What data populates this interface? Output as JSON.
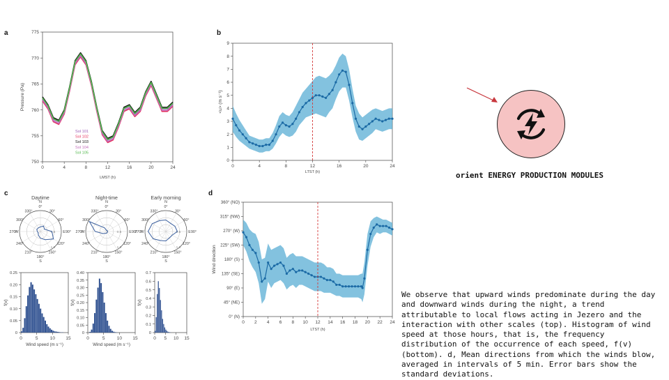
{
  "colors": {
    "primary_blue": "#1b6aa5",
    "band_blue": "#5aaed4",
    "red_dashed": "#d43a3a",
    "badge_fill": "#f6c3c3",
    "arrow": "#c8373d",
    "hist_fill": "#2d4f8f",
    "rose_line": "#3a5f9e",
    "sol_101": "#9b59b6",
    "sol_102": "#e6335f",
    "sol_103": "#111111",
    "sol_104": "#c06ab8",
    "sol_105": "#52b84c"
  },
  "icons": {
    "badge": "bolt-cycle-icon",
    "arrow": "arrow-pointer-icon"
  },
  "module_label": "orient ENERGY PRODUCTION MODULES",
  "caption": "We observe that upward winds predominate during the day and downward winds during the night, a trend attributable to local flows acting in Jezero and the interaction with other scales (top). Histogram of wind speed at those hours, that is, the frequency distribution of the occurrence of each speed, f(v) (bottom). d, Mean directions from which the winds blow, averaged in intervals of 5 min. Error bars show the standard deviations.",
  "chart_data": [
    {
      "panel": "a",
      "type": "line",
      "xlabel": "LMST (h)",
      "ylabel": "Pressure (Pa)",
      "xlim": [
        0,
        24
      ],
      "ylim": [
        750,
        775
      ],
      "xticks": [
        "0",
        "4",
        "8",
        "12",
        "16",
        "20",
        "24"
      ],
      "yticks": [
        "750",
        "755",
        "760",
        "765",
        "770",
        "775"
      ],
      "series": [
        {
          "name": "Sol 101",
          "color_key": "sol_101",
          "dy": 0.2,
          "x": [
            0,
            1,
            2,
            3,
            4,
            5,
            6,
            7,
            8,
            9,
            10,
            11,
            12,
            13,
            14,
            15,
            16,
            17,
            18,
            19,
            20,
            21,
            22,
            23,
            24
          ],
          "y": [
            762,
            760.5,
            758,
            757.5,
            759.5,
            764,
            769,
            770.5,
            769,
            765,
            760,
            755.5,
            754,
            754.5,
            757,
            760,
            760.5,
            759,
            760,
            763,
            765,
            762.5,
            760,
            760,
            761
          ]
        },
        {
          "name": "Sol 102",
          "color_key": "sol_102",
          "dy": -0.3,
          "x": [
            0,
            1,
            2,
            3,
            4,
            5,
            6,
            7,
            8,
            9,
            10,
            11,
            12,
            13,
            14,
            15,
            16,
            17,
            18,
            19,
            20,
            21,
            22,
            23,
            24
          ],
          "y": [
            762,
            760.5,
            758,
            757.5,
            759.5,
            764,
            769,
            770.5,
            769,
            765,
            760,
            755.5,
            754,
            754.5,
            757,
            760,
            760.5,
            759,
            760,
            763,
            765,
            762.5,
            760,
            760,
            761
          ]
        },
        {
          "name": "Sol 103",
          "color_key": "sol_103",
          "dy": 0.5,
          "x": [
            0,
            1,
            2,
            3,
            4,
            5,
            6,
            7,
            8,
            9,
            10,
            11,
            12,
            13,
            14,
            15,
            16,
            17,
            18,
            19,
            20,
            21,
            22,
            23,
            24
          ],
          "y": [
            762,
            760.5,
            758,
            757.5,
            759.5,
            764,
            769,
            770.5,
            769,
            765,
            760,
            755.5,
            754,
            754.5,
            757,
            760,
            760.5,
            759,
            760,
            763,
            765,
            762.5,
            760,
            760,
            761
          ]
        },
        {
          "name": "Sol 104",
          "color_key": "sol_104",
          "dy": -0.1,
          "x": [
            0,
            1,
            2,
            3,
            4,
            5,
            6,
            7,
            8,
            9,
            10,
            11,
            12,
            13,
            14,
            15,
            16,
            17,
            18,
            19,
            20,
            21,
            22,
            23,
            24
          ],
          "y": [
            762,
            760.5,
            758,
            757.5,
            759.5,
            764,
            769,
            770.5,
            769,
            765,
            760,
            755.5,
            754,
            754.5,
            757,
            760,
            760.5,
            759,
            760,
            763,
            765,
            762.5,
            760,
            760,
            761
          ]
        },
        {
          "name": "Sol 105",
          "color_key": "sol_105",
          "dy": 0.3,
          "x": [
            0,
            1,
            2,
            3,
            4,
            5,
            6,
            7,
            8,
            9,
            10,
            11,
            12,
            13,
            14,
            15,
            16,
            17,
            18,
            19,
            20,
            21,
            22,
            23,
            24
          ],
          "y": [
            762,
            760.5,
            758,
            757.5,
            759.5,
            764,
            769,
            770.5,
            769,
            765,
            760,
            755.5,
            754,
            754.5,
            757,
            760,
            760.5,
            759,
            760,
            763,
            765,
            762.5,
            760,
            760,
            761
          ]
        }
      ]
    },
    {
      "panel": "b",
      "type": "line",
      "xlabel": "LTST (h)",
      "ylabel": "<u> (m s⁻¹)",
      "xlim": [
        0,
        24
      ],
      "ylim": [
        0,
        9
      ],
      "xticks": [
        "0",
        "4",
        "8",
        "12",
        "16",
        "20",
        "24"
      ],
      "yticks": [
        "0",
        "1",
        "2",
        "3",
        "4",
        "5",
        "6",
        "7",
        "8",
        "9"
      ],
      "vline_x": 12,
      "series": [
        {
          "name": "",
          "x": [
            0,
            0.5,
            1,
            1.5,
            2,
            2.5,
            3,
            3.5,
            4,
            4.5,
            5,
            5.5,
            6,
            6.5,
            7,
            7.5,
            8,
            8.5,
            9,
            9.5,
            10,
            10.5,
            11,
            11.5,
            12,
            12.5,
            13,
            13.5,
            14,
            14.5,
            15,
            15.5,
            16,
            16.5,
            17,
            17.5,
            18,
            18.5,
            19,
            19.5,
            20,
            20.5,
            21,
            21.5,
            22,
            22.5,
            23,
            23.5,
            24
          ],
          "y": [
            3.2,
            2.7,
            2.3,
            2.0,
            1.7,
            1.4,
            1.3,
            1.2,
            1.1,
            1.1,
            1.2,
            1.2,
            1.5,
            2.0,
            2.6,
            2.9,
            2.7,
            2.6,
            2.8,
            3.2,
            3.7,
            4.1,
            4.4,
            4.6,
            4.8,
            5.0,
            5.0,
            4.9,
            4.8,
            5.1,
            5.4,
            6.0,
            6.6,
            6.9,
            6.8,
            5.8,
            4.4,
            3.2,
            2.6,
            2.4,
            2.6,
            2.8,
            3.0,
            3.2,
            3.1,
            3.0,
            3.1,
            3.2,
            3.2
          ],
          "err": [
            1.0,
            0.9,
            0.8,
            0.7,
            0.6,
            0.5,
            0.5,
            0.5,
            0.5,
            0.5,
            0.5,
            0.5,
            0.6,
            0.7,
            0.8,
            0.8,
            0.8,
            0.8,
            0.9,
            1.0,
            1.0,
            1.1,
            1.1,
            1.2,
            1.3,
            1.4,
            1.5,
            1.5,
            1.5,
            1.4,
            1.4,
            1.3,
            1.3,
            1.3,
            1.2,
            1.2,
            1.1,
            1.0,
            1.0,
            0.9,
            0.9,
            0.9,
            0.9,
            0.8,
            0.8,
            0.8,
            0.8,
            0.8,
            0.8
          ]
        }
      ]
    },
    {
      "panel": "c",
      "type": "polar",
      "titles": [
        "Daytime",
        "Night-time",
        "Early morning"
      ],
      "angle_labels": [
        "N",
        "0°",
        "30°",
        "60°",
        "E",
        "90°",
        "120°",
        "150°",
        "180°",
        "S",
        "210°",
        "240°",
        "270°",
        "W",
        "300°",
        "330°"
      ],
      "radial_labels": [
        "0.5",
        "1.0"
      ],
      "series": [
        {
          "name": "",
          "angles": [
            0,
            30,
            60,
            90,
            120,
            150,
            180,
            210,
            240,
            270,
            300,
            330
          ],
          "r": [
            0.22,
            0.3,
            0.22,
            0.55,
            0.72,
            0.45,
            0.32,
            0.2,
            0.12,
            0.15,
            0.2,
            0.2
          ]
        },
        {
          "name": "",
          "angles": [
            0,
            30,
            60,
            90,
            120,
            150,
            180,
            210,
            240,
            270,
            300,
            330
          ],
          "r": [
            0.05,
            0.05,
            0.05,
            0.05,
            0.05,
            0.05,
            0.08,
            0.1,
            0.2,
            0.55,
            0.95,
            0.2
          ]
        },
        {
          "name": "",
          "angles": [
            0,
            30,
            60,
            90,
            120,
            150,
            180,
            210,
            240,
            270,
            300,
            330
          ],
          "r": [
            0.55,
            0.45,
            0.5,
            0.55,
            0.35,
            0.35,
            0.45,
            0.5,
            0.7,
            0.85,
            0.75,
            0.6
          ]
        }
      ]
    },
    {
      "panel": "c",
      "type": "bar",
      "xlabel": "Wind speed (m s⁻¹)",
      "ylabel": "f(v)",
      "xlim": [
        0,
        15
      ],
      "ylim": [
        0,
        0.25
      ],
      "xticks": [
        "0",
        "5",
        "10",
        "15"
      ],
      "yticks": [
        "0",
        "0.05",
        "0.10",
        "0.15",
        "0.20",
        "0.25"
      ],
      "bin_width": 0.5,
      "values": [
        0.005,
        0.02,
        0.06,
        0.11,
        0.155,
        0.19,
        0.21,
        0.2,
        0.18,
        0.16,
        0.14,
        0.12,
        0.1,
        0.08,
        0.065,
        0.05,
        0.035,
        0.025,
        0.018,
        0.012,
        0.008,
        0.005,
        0.004,
        0.003,
        0.002,
        0.001,
        0.001,
        0,
        0,
        0
      ]
    },
    {
      "panel": "c",
      "type": "bar",
      "xlabel": "Wind speed (m s⁻¹)",
      "ylabel": "f(v)",
      "xlim": [
        0,
        15
      ],
      "ylim": [
        0,
        0.4
      ],
      "xticks": [
        "0",
        "5",
        "10",
        "15"
      ],
      "yticks": [
        "0",
        "0.05",
        "0.10",
        "0.15",
        "0.20",
        "0.25",
        "0.30",
        "0.35",
        "0.40"
      ],
      "bin_width": 0.5,
      "values": [
        0,
        0.005,
        0.02,
        0.06,
        0.13,
        0.22,
        0.3,
        0.36,
        0.33,
        0.27,
        0.2,
        0.13,
        0.08,
        0.045,
        0.025,
        0.012,
        0.006,
        0.003,
        0.001,
        0,
        0,
        0,
        0,
        0,
        0,
        0,
        0,
        0,
        0,
        0
      ]
    },
    {
      "panel": "c",
      "type": "bar",
      "xlabel": "",
      "ylabel": "f(v)",
      "xlim": [
        0,
        15
      ],
      "ylim": [
        0,
        0.7
      ],
      "xticks": [
        "0",
        "5",
        "10",
        "15"
      ],
      "yticks": [
        "0",
        "0.1",
        "0.2",
        "0.3",
        "0.4",
        "0.5",
        "0.6",
        "0.7"
      ],
      "bin_width": 0.5,
      "values": [
        0.02,
        0.18,
        0.45,
        0.6,
        0.52,
        0.38,
        0.26,
        0.16,
        0.1,
        0.06,
        0.035,
        0.02,
        0.01,
        0.006,
        0.003,
        0.001,
        0,
        0,
        0,
        0,
        0,
        0,
        0,
        0,
        0,
        0,
        0,
        0,
        0,
        0
      ]
    },
    {
      "panel": "d",
      "type": "line",
      "xlabel": "LTST (h)",
      "ylabel": "Wind direction",
      "xlim": [
        0,
        24
      ],
      "ylim": [
        0,
        360
      ],
      "xticks": [
        "0",
        "2",
        "4",
        "6",
        "8",
        "10",
        "12",
        "14",
        "16",
        "18",
        "20",
        "22",
        "24"
      ],
      "yticks": [
        "0° (N)",
        "45° (NE)",
        "90° (E)",
        "135° (SE)",
        "180° (S)",
        "225° (SW)",
        "270° (W)",
        "315° (NW)",
        "360° (NO)"
      ],
      "vline_x": 12,
      "series": [
        {
          "name": "",
          "x": [
            0,
            0.5,
            1,
            1.5,
            2,
            2.5,
            3,
            3.5,
            4,
            4.5,
            5,
            5.5,
            6,
            6.5,
            7,
            7.5,
            8,
            8.5,
            9,
            9.5,
            10,
            10.5,
            11,
            11.5,
            12,
            12.5,
            13,
            13.5,
            14,
            14.5,
            15,
            15.5,
            16,
            16.5,
            17,
            17.5,
            18,
            18.5,
            19,
            19.2,
            19.5,
            20,
            20.5,
            21,
            21.5,
            22,
            22.5,
            23,
            23.5,
            24
          ],
          "y": [
            265,
            250,
            225,
            210,
            200,
            170,
            110,
            120,
            170,
            150,
            160,
            165,
            170,
            160,
            135,
            145,
            150,
            140,
            145,
            145,
            140,
            135,
            130,
            125,
            125,
            125,
            120,
            115,
            115,
            110,
            100,
            100,
            95,
            95,
            95,
            95,
            95,
            95,
            95,
            90,
            120,
            210,
            260,
            280,
            290,
            285,
            285,
            285,
            280,
            275
          ],
          "err": [
            40,
            45,
            50,
            55,
            60,
            65,
            70,
            65,
            60,
            60,
            55,
            55,
            55,
            55,
            50,
            50,
            50,
            50,
            45,
            45,
            45,
            45,
            45,
            45,
            45,
            45,
            45,
            40,
            40,
            40,
            35,
            35,
            35,
            35,
            35,
            35,
            35,
            35,
            40,
            45,
            50,
            50,
            40,
            30,
            25,
            25,
            20,
            20,
            20,
            20
          ]
        }
      ]
    }
  ]
}
